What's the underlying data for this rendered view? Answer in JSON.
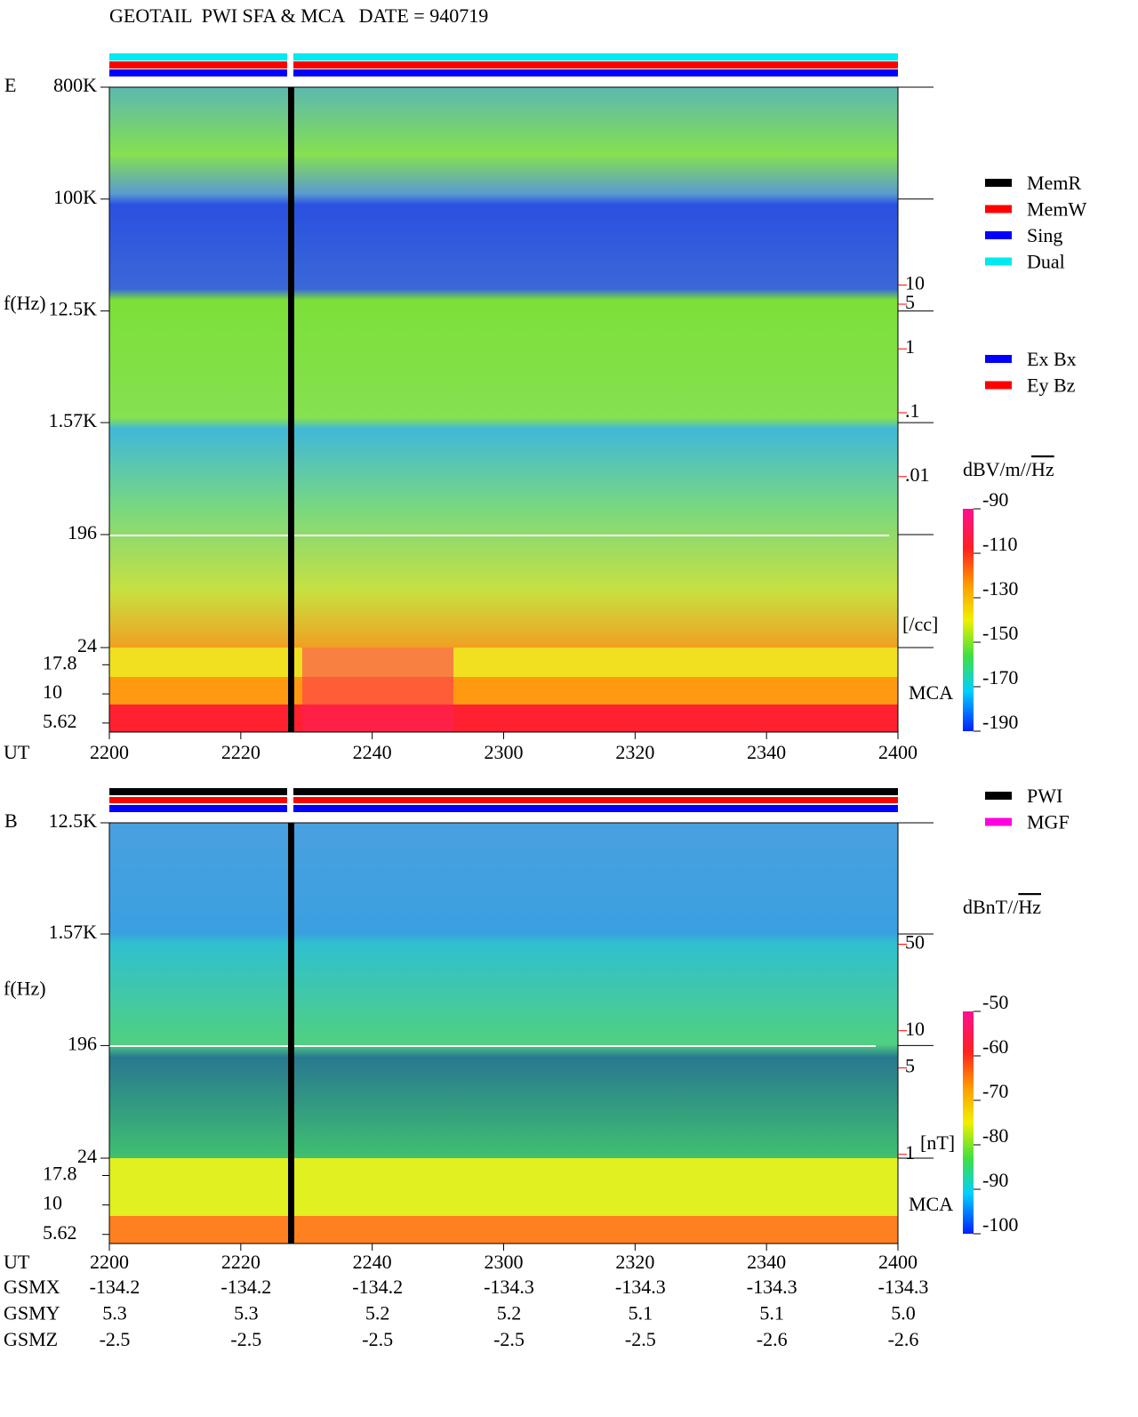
{
  "title": "GEOTAIL  PWI SFA & MCA   DATE = 940719",
  "chart_data": [
    {
      "type": "spectrogram",
      "panel_label": "E",
      "y_label": "f(Hz)",
      "x_label": "UT",
      "log_y": true,
      "ylim": [
        24,
        800000
      ],
      "yticks": [
        {
          "value": 800000,
          "label": "800K"
        },
        {
          "value": 100000,
          "label": "100K"
        },
        {
          "value": 12500,
          "label": "12.5K"
        },
        {
          "value": 1570,
          "label": "1.57K"
        },
        196,
        24
      ],
      "mca_label": "MCA",
      "mca_ylim": [
        4.7,
        25
      ],
      "mca_yticks": [
        17.8,
        10,
        5.62
      ],
      "xlim": [
        0,
        120
      ],
      "xticks": [
        {
          "value": 0,
          "label": "2200"
        },
        {
          "value": 20,
          "label": "2220"
        },
        {
          "value": 40,
          "label": "2240"
        },
        {
          "value": 60,
          "label": "2300"
        },
        {
          "value": 80,
          "label": "2320"
        },
        {
          "value": 100,
          "label": "2340"
        },
        {
          "value": 120,
          "label": "2400"
        }
      ],
      "y2lim": [
        1e-06,
        12500
      ],
      "y2_color": "#ff0000",
      "y2_label": "[/cc]",
      "y2ticks": [
        10,
        5,
        1,
        {
          "value": 0.1,
          "label": ".1"
        },
        {
          "value": 0.01,
          "label": ".01"
        }
      ],
      "colorbar": {
        "unit": "dBV/m//",
        "unit_root": "Hz",
        "lim": [
          -190,
          -90
        ],
        "ticks": [
          -90,
          -110,
          -130,
          -150,
          -170,
          -190
        ]
      },
      "legend": [
        {
          "name": "MemR",
          "color": "#000000"
        },
        {
          "name": "MemW",
          "color": "#ff0000"
        },
        {
          "name": "Sing",
          "color": "#0000ff"
        },
        {
          "name": "Dual",
          "color": "#00e8f0"
        }
      ],
      "legend2": [
        {
          "name": "Ex Bx",
          "color": "#0000ff"
        },
        {
          "name": "Ey Bz",
          "color": "#ff0000"
        }
      ]
    },
    {
      "type": "spectrogram",
      "panel_label": "B",
      "y_label": "f(Hz)",
      "x_label": "UT",
      "log_y": true,
      "ylim": [
        24,
        12500
      ],
      "yticks": [
        {
          "value": 12500,
          "label": "12.5K"
        },
        {
          "value": 1570,
          "label": "1.57K"
        },
        196,
        24
      ],
      "mca_label": "MCA",
      "mca_ylim": [
        4.7,
        25
      ],
      "mca_yticks": [
        17.8,
        10,
        5.62
      ],
      "xlim": [
        0,
        120
      ],
      "xticks": [
        {
          "value": 0,
          "label": "2200"
        },
        {
          "value": 20,
          "label": "2220"
        },
        {
          "value": 40,
          "label": "2240"
        },
        {
          "value": 60,
          "label": "2300"
        },
        {
          "value": 80,
          "label": "2320"
        },
        {
          "value": 100,
          "label": "2340"
        },
        {
          "value": 120,
          "label": "2400"
        }
      ],
      "y2lim": [
        0.19,
        480
      ],
      "y2_color": "#ff0000",
      "y2_label": "[nT]",
      "y2ticks": [
        50,
        10,
        5,
        1
      ],
      "colorbar": {
        "unit": "dBnT//",
        "unit_root": "Hz",
        "lim": [
          -100,
          -50
        ],
        "ticks": [
          -50,
          -60,
          -70,
          -80,
          -90,
          -100
        ]
      },
      "legend": [
        {
          "name": "PWI",
          "color": "#000000"
        },
        {
          "name": "MGF",
          "color": "#ff00e0"
        }
      ]
    }
  ],
  "orbit": {
    "rows": [
      {
        "name": "GSMX",
        "values": [
          "-134.2",
          "-134.2",
          "-134.2",
          "-134.3",
          "-134.3",
          "-134.3",
          "-134.3"
        ]
      },
      {
        "name": "GSMY",
        "values": [
          "5.3",
          "5.3",
          "5.2",
          "5.2",
          "5.1",
          "5.1",
          "5.0"
        ]
      },
      {
        "name": "GSMZ",
        "values": [
          "-2.5",
          "-2.5",
          "-2.5",
          "-2.5",
          "-2.5",
          "-2.6",
          "-2.6"
        ]
      }
    ]
  }
}
